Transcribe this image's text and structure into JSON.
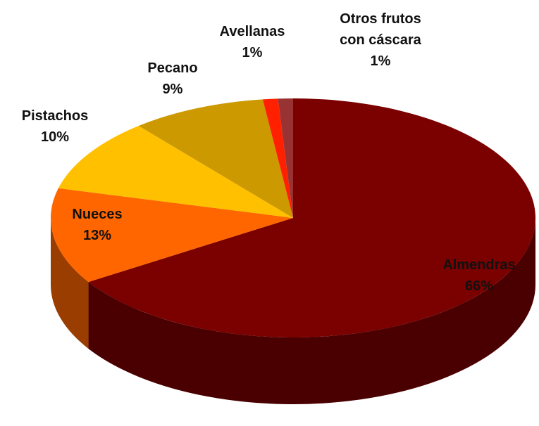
{
  "chart_data": {
    "type": "pie",
    "categories": [
      "Almendras",
      "Nueces",
      "Pistachos",
      "Pecano",
      "Avellanas",
      "Otros frutos con cáscara"
    ],
    "values": [
      66,
      13,
      10,
      9,
      1,
      1
    ],
    "value_labels": [
      "66%",
      "13%",
      "10%",
      "9%",
      "1%",
      "1%"
    ],
    "colors": [
      "#7b0000",
      "#ff6600",
      "#ffc000",
      "#cc9900",
      "#ff2000",
      "#993333"
    ]
  }
}
